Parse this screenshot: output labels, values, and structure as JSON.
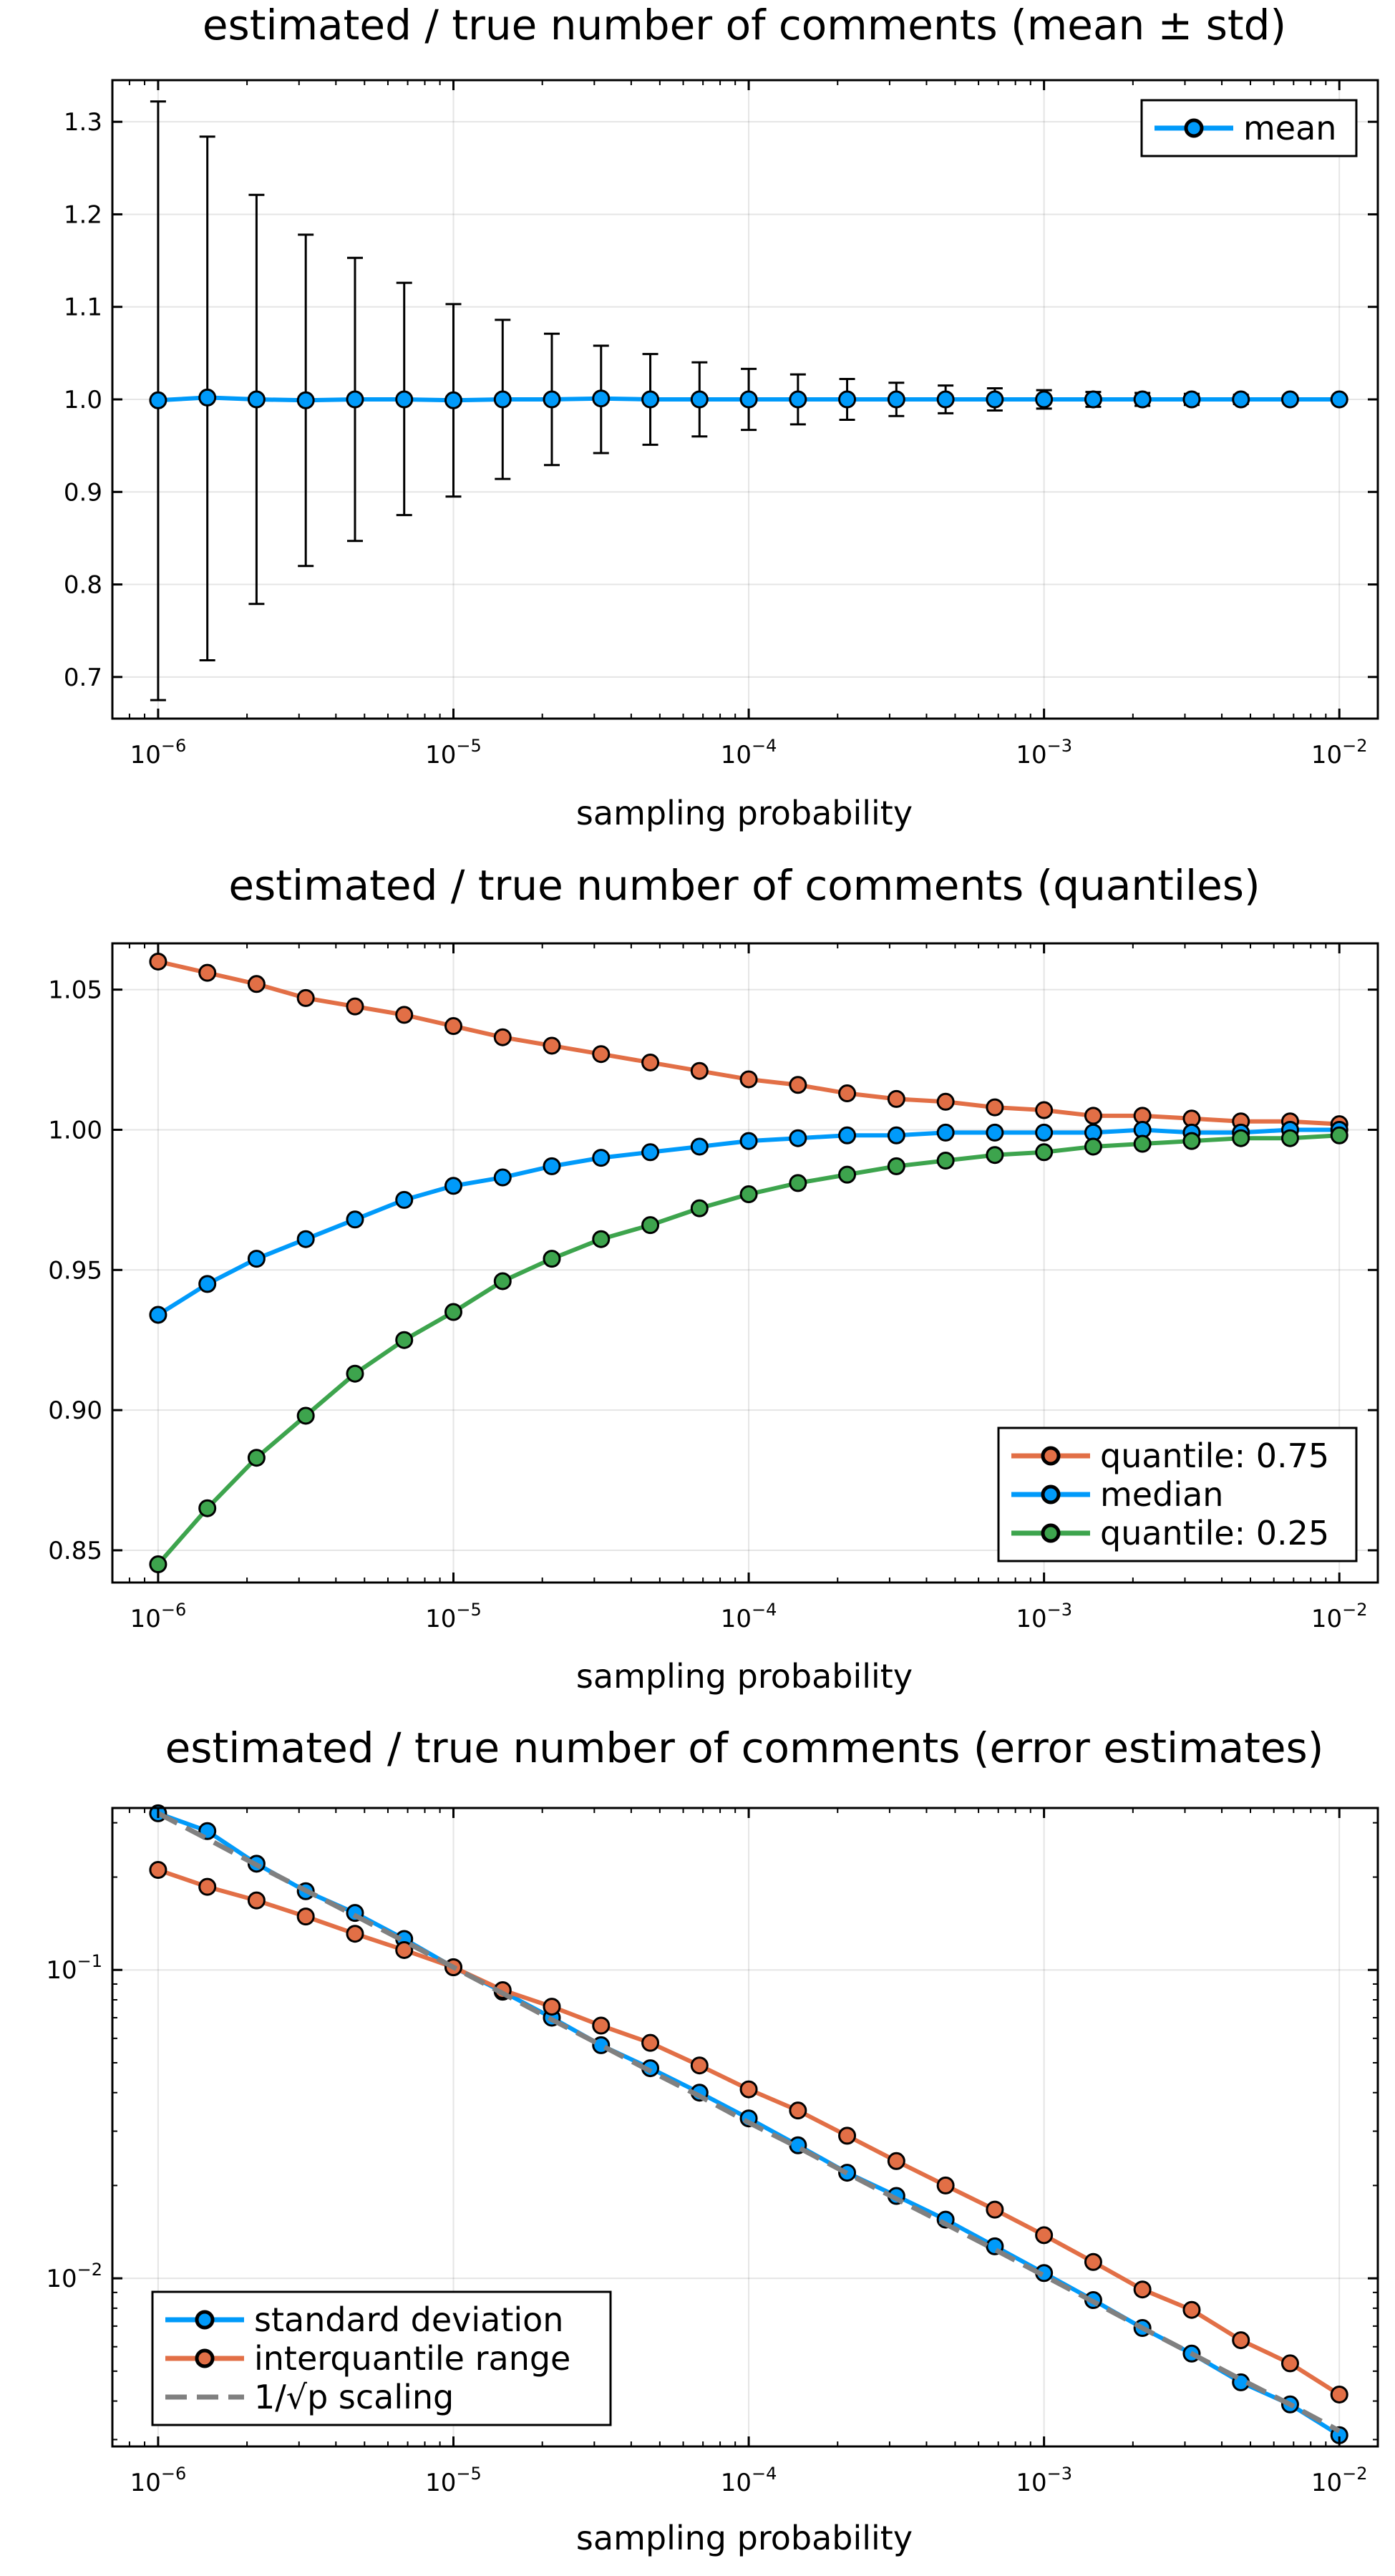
{
  "chart_data": [
    {
      "type": "line",
      "title": "estimated / true number of comments (mean ± std)",
      "xlabel": "sampling probability",
      "ylabel": "",
      "xscale": "log",
      "yscale": "linear",
      "xlim": [
        7e-07,
        0.0135
      ],
      "ylim": [
        0.655,
        1.345
      ],
      "x": [
        1e-06,
        1.468e-06,
        2.154e-06,
        3.162e-06,
        4.642e-06,
        6.813e-06,
        1e-05,
        1.468e-05,
        2.154e-05,
        3.162e-05,
        4.642e-05,
        6.813e-05,
        0.0001,
        0.0001468,
        0.0002154,
        0.0003162,
        0.0004642,
        0.0006813,
        0.001,
        0.001468,
        0.002154,
        0.003162,
        0.004642,
        0.006813,
        0.01
      ],
      "xticks": {
        "values": [
          1e-06,
          1e-05,
          0.0001,
          0.001,
          0.01
        ],
        "base": "10",
        "exponents": [
          "−6",
          "−5",
          "−4",
          "−3",
          "−2"
        ]
      },
      "yticks": {
        "values": [
          0.7,
          0.8,
          0.9,
          1.0,
          1.1,
          1.2,
          1.3
        ],
        "labels": [
          "0.7",
          "0.8",
          "0.9",
          "1.0",
          "1.1",
          "1.2",
          "1.3"
        ]
      },
      "grid": true,
      "legend_position": "top-right",
      "series": [
        {
          "name": "mean",
          "color": "#009AFA",
          "values": [
            0.999,
            1.002,
            1.0,
            0.999,
            1.0,
            1.0,
            0.999,
            1.0,
            1.0,
            1.001,
            1.0,
            1.0,
            1.0,
            1.0,
            1.0,
            1.0,
            1.0,
            1.0,
            1.0,
            1.0,
            1.0,
            1.0,
            1.0,
            1.0,
            1.0
          ],
          "error_lower": [
            0.675,
            0.718,
            0.779,
            0.82,
            0.847,
            0.875,
            0.895,
            0.914,
            0.929,
            0.942,
            0.951,
            0.96,
            0.967,
            0.973,
            0.978,
            0.982,
            0.985,
            0.988,
            0.99,
            0.992,
            0.993,
            0.994,
            0.995,
            0.996,
            0.997
          ],
          "error_upper": [
            1.322,
            1.284,
            1.221,
            1.178,
            1.153,
            1.126,
            1.103,
            1.086,
            1.071,
            1.058,
            1.049,
            1.04,
            1.033,
            1.027,
            1.022,
            1.018,
            1.015,
            1.012,
            1.01,
            1.008,
            1.007,
            1.006,
            1.005,
            1.004,
            1.003
          ]
        }
      ]
    },
    {
      "type": "line",
      "title": "estimated / true number of comments (quantiles)",
      "xlabel": "sampling probability",
      "ylabel": "",
      "xscale": "log",
      "yscale": "linear",
      "xlim": [
        7e-07,
        0.0135
      ],
      "ylim": [
        0.8385,
        1.0665
      ],
      "x": [
        1e-06,
        1.468e-06,
        2.154e-06,
        3.162e-06,
        4.642e-06,
        6.813e-06,
        1e-05,
        1.468e-05,
        2.154e-05,
        3.162e-05,
        4.642e-05,
        6.813e-05,
        0.0001,
        0.0001468,
        0.0002154,
        0.0003162,
        0.0004642,
        0.0006813,
        0.001,
        0.001468,
        0.002154,
        0.003162,
        0.004642,
        0.006813,
        0.01
      ],
      "xticks": {
        "values": [
          1e-06,
          1e-05,
          0.0001,
          0.001,
          0.01
        ],
        "base": "10",
        "exponents": [
          "−6",
          "−5",
          "−4",
          "−3",
          "−2"
        ]
      },
      "yticks": {
        "values": [
          0.85,
          0.9,
          0.95,
          1.0,
          1.05
        ],
        "labels": [
          "0.85",
          "0.90",
          "0.95",
          "1.00",
          "1.05"
        ]
      },
      "grid": true,
      "legend_position": "bottom-right",
      "series": [
        {
          "name": "quantile: 0.75",
          "color": "#E26F46",
          "values": [
            1.06,
            1.056,
            1.052,
            1.047,
            1.044,
            1.041,
            1.037,
            1.033,
            1.03,
            1.027,
            1.024,
            1.021,
            1.018,
            1.016,
            1.013,
            1.011,
            1.01,
            1.008,
            1.007,
            1.005,
            1.005,
            1.004,
            1.003,
            1.003,
            1.002
          ]
        },
        {
          "name": "median",
          "color": "#009AFA",
          "values": [
            0.934,
            0.945,
            0.954,
            0.961,
            0.968,
            0.975,
            0.98,
            0.983,
            0.987,
            0.99,
            0.992,
            0.994,
            0.996,
            0.997,
            0.998,
            0.998,
            0.999,
            0.999,
            0.999,
            0.999,
            1.0,
            0.999,
            0.999,
            1.0,
            1.0
          ]
        },
        {
          "name": "quantile: 0.25",
          "color": "#3DA44D",
          "values": [
            0.845,
            0.865,
            0.883,
            0.898,
            0.913,
            0.925,
            0.935,
            0.946,
            0.954,
            0.961,
            0.966,
            0.972,
            0.977,
            0.981,
            0.984,
            0.987,
            0.989,
            0.991,
            0.992,
            0.994,
            0.995,
            0.996,
            0.997,
            0.997,
            0.998
          ]
        }
      ]
    },
    {
      "type": "line",
      "title": "estimated / true number of comments (error estimates)",
      "xlabel": "sampling probability",
      "ylabel": "",
      "xscale": "log",
      "yscale": "log",
      "xlim": [
        7e-07,
        0.0135
      ],
      "ylim": [
        0.00285,
        0.335
      ],
      "x": [
        1e-06,
        1.468e-06,
        2.154e-06,
        3.162e-06,
        4.642e-06,
        6.813e-06,
        1e-05,
        1.468e-05,
        2.154e-05,
        3.162e-05,
        4.642e-05,
        6.813e-05,
        0.0001,
        0.0001468,
        0.0002154,
        0.0003162,
        0.0004642,
        0.0006813,
        0.001,
        0.001468,
        0.002154,
        0.003162,
        0.004642,
        0.006813,
        0.01
      ],
      "xticks": {
        "values": [
          1e-06,
          1e-05,
          0.0001,
          0.001,
          0.01
        ],
        "base": "10",
        "exponents": [
          "−6",
          "−5",
          "−4",
          "−3",
          "−2"
        ]
      },
      "yticks": {
        "values": [
          0.01,
          0.1
        ],
        "base": "10",
        "exponents": [
          "−2",
          "−1"
        ]
      },
      "grid": true,
      "legend_position": "bottom-left",
      "series": [
        {
          "name": "standard deviation",
          "color": "#009AFA",
          "values": [
            0.322,
            0.282,
            0.221,
            0.18,
            0.153,
            0.126,
            0.102,
            0.085,
            0.07,
            0.057,
            0.048,
            0.04,
            0.033,
            0.027,
            0.022,
            0.0185,
            0.0155,
            0.0127,
            0.0104,
            0.0085,
            0.0069,
            0.0057,
            0.0046,
            0.0039,
            0.0031
          ]
        },
        {
          "name": "interquantile range",
          "color": "#E26F46",
          "values": [
            0.211,
            0.186,
            0.168,
            0.149,
            0.131,
            0.116,
            0.102,
            0.086,
            0.076,
            0.066,
            0.058,
            0.049,
            0.041,
            0.035,
            0.029,
            0.024,
            0.02,
            0.0167,
            0.0138,
            0.0113,
            0.0092,
            0.0079,
            0.0063,
            0.0053,
            0.0042
          ]
        },
        {
          "name": "1/√p scaling",
          "color": "#808080",
          "dashed": true,
          "values": [
            0.322,
            0.266,
            0.219,
            0.181,
            0.15,
            0.124,
            0.102,
            0.084,
            0.069,
            0.057,
            0.047,
            0.039,
            0.032,
            0.0266,
            0.0219,
            0.0181,
            0.015,
            0.0124,
            0.0102,
            0.0084,
            0.0069,
            0.0057,
            0.0047,
            0.0039,
            0.0032
          ]
        }
      ]
    }
  ]
}
